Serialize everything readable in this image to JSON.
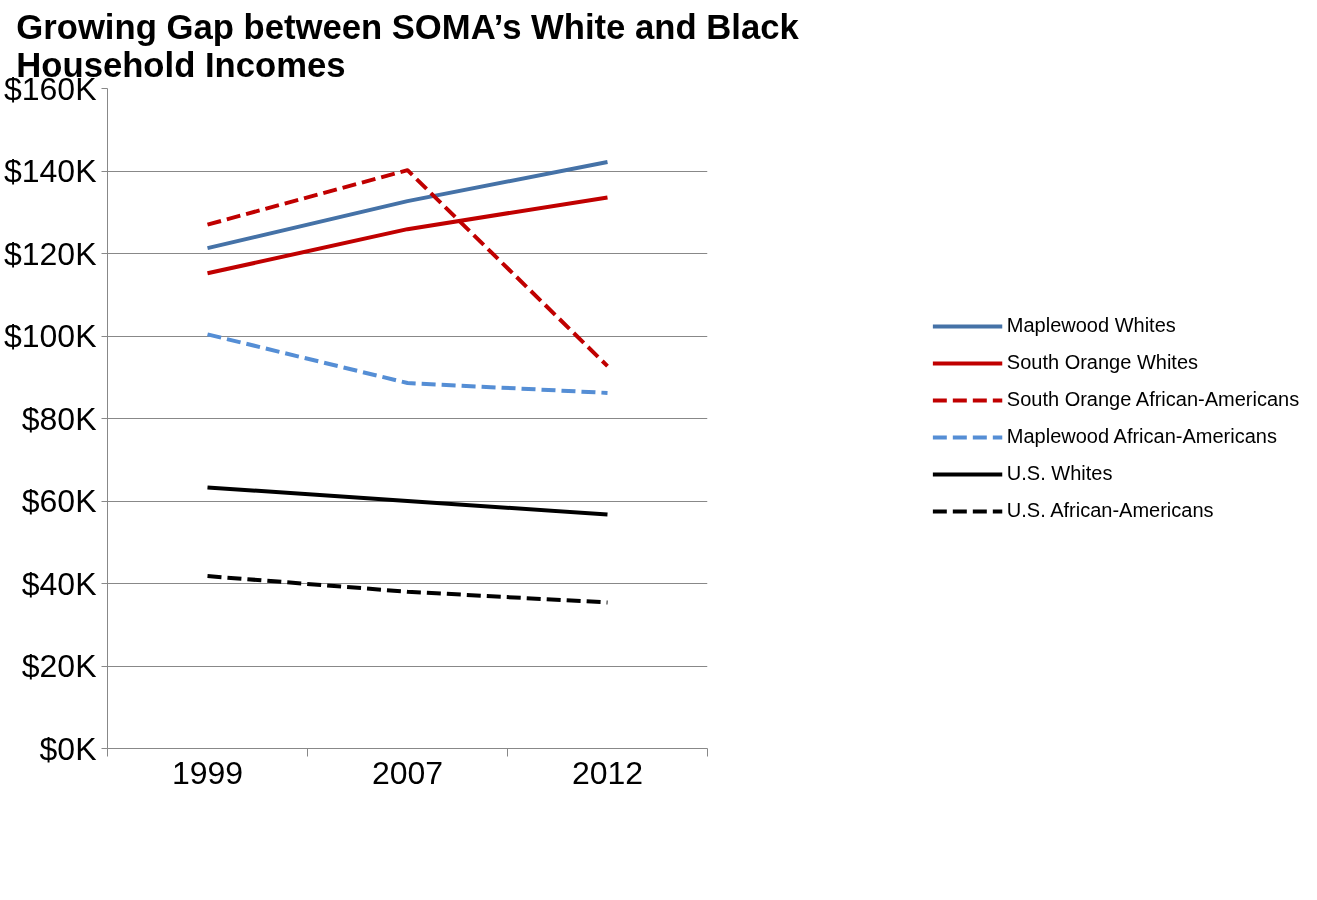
{
  "chart_data": {
    "type": "line",
    "title": "Growing Gap between SOMA’s White and Black Household Incomes",
    "categories": [
      "1999",
      "2007",
      "2012"
    ],
    "series": [
      {
        "name": "Maplewood Whites",
        "color": "#4572a7",
        "line_style": "solid",
        "values": [
          121.3,
          132.7,
          142.2
        ]
      },
      {
        "name": "South Orange Whites",
        "color": "#c00000",
        "line_style": "solid",
        "values": [
          115.2,
          125.9,
          133.6
        ]
      },
      {
        "name": "South Orange African-Americans",
        "color": "#c00000",
        "line_style": "dashed",
        "values": [
          127.0,
          140.2,
          92.7
        ]
      },
      {
        "name": "Maplewood African-Americans",
        "color": "#558ed5",
        "line_style": "dashed",
        "values": [
          100.4,
          88.6,
          86.2
        ]
      },
      {
        "name": "U.S. Whites",
        "color": "#000000",
        "line_style": "solid",
        "values": [
          63.3,
          60.0,
          56.7
        ]
      },
      {
        "name": "U.S. African-Americans",
        "color": "#000000",
        "line_style": "dashed",
        "values": [
          41.8,
          38.0,
          35.4
        ]
      }
    ],
    "ylim": [
      0,
      160
    ],
    "yticks": [
      {
        "value": 0,
        "label": "$0K"
      },
      {
        "value": 20,
        "label": "$20K"
      },
      {
        "value": 40,
        "label": "$40K"
      },
      {
        "value": 60,
        "label": "$60K"
      },
      {
        "value": 80,
        "label": "$80K"
      },
      {
        "value": 100,
        "label": "$100K"
      },
      {
        "value": 120,
        "label": "$120K"
      },
      {
        "value": 140,
        "label": "$140K"
      },
      {
        "value": 160,
        "label": "$160K"
      }
    ],
    "grid": "y",
    "legend": "right",
    "marker": "none"
  }
}
